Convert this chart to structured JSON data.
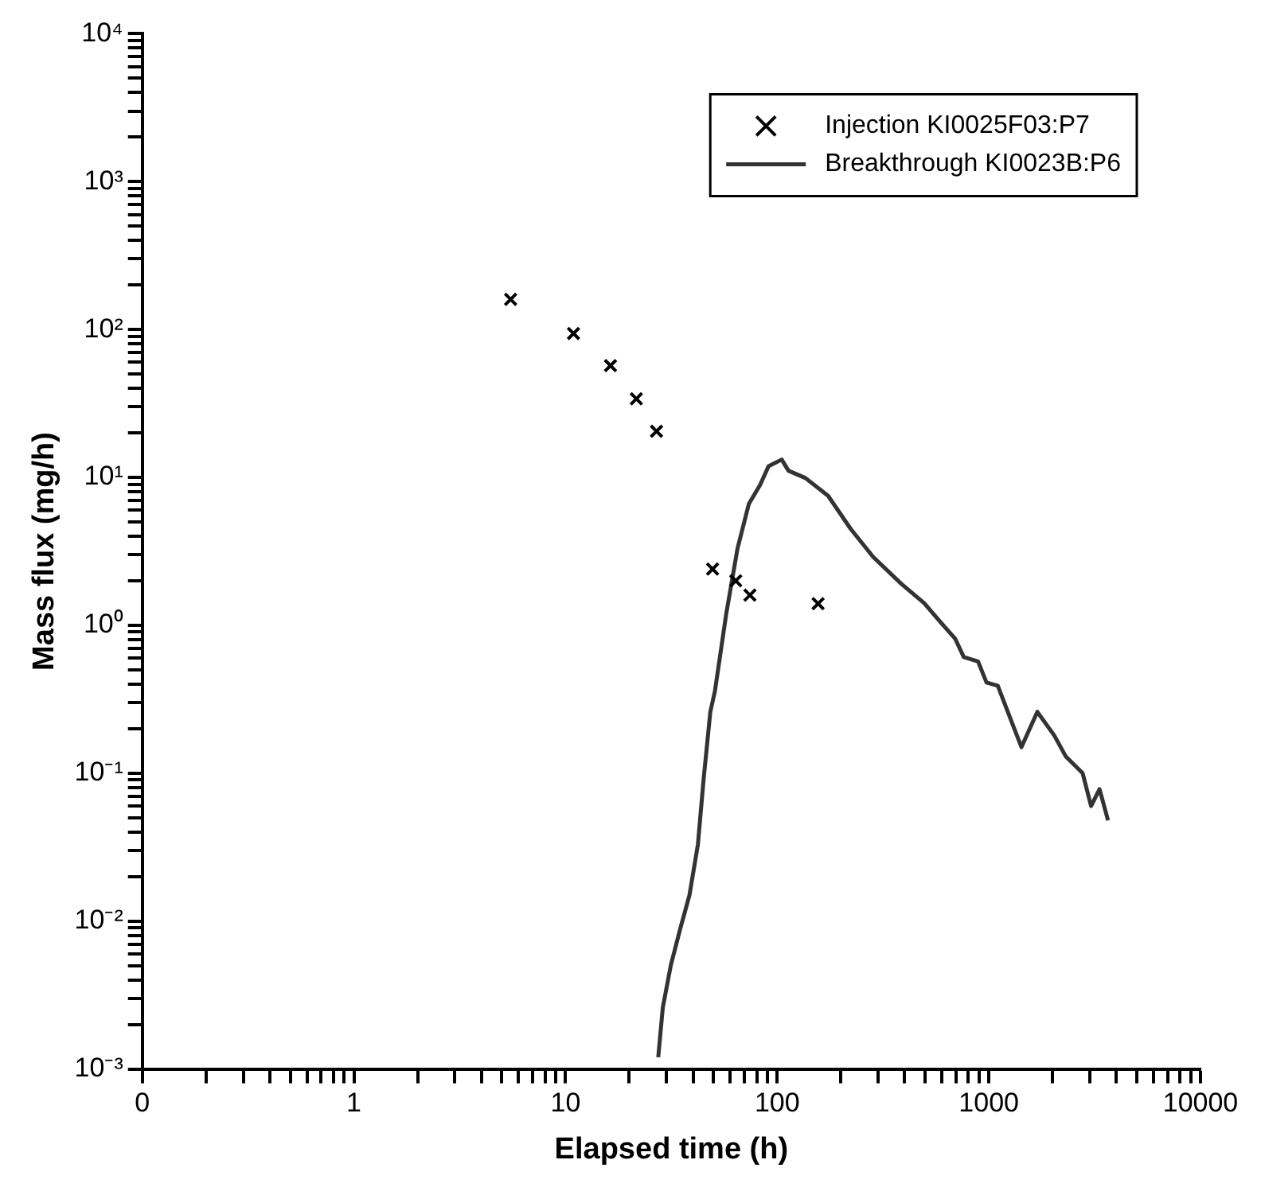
{
  "chart_data": {
    "type": "scatter",
    "xlabel": "Elapsed time (h)",
    "ylabel": "Mass flux (mg/h)",
    "log": "xy",
    "grid": false,
    "legend": "top right",
    "xlim": [
      0.1,
      10000
    ],
    "xticks": [
      {
        "value": 0.1,
        "label": "0"
      },
      {
        "value": 0.2,
        "label": null
      },
      {
        "value": 0.3,
        "label": null
      },
      {
        "value": 0.4,
        "label": null
      },
      {
        "value": 0.5,
        "label": null
      },
      {
        "value": 0.6,
        "label": null
      },
      {
        "value": 0.7,
        "label": null
      },
      {
        "value": 0.8,
        "label": null
      },
      {
        "value": 0.9,
        "label": null
      },
      1,
      {
        "value": 2,
        "label": null
      },
      {
        "value": 3,
        "label": null
      },
      {
        "value": 4,
        "label": null
      },
      {
        "value": 5,
        "label": null
      },
      {
        "value": 6,
        "label": null
      },
      {
        "value": 7,
        "label": null
      },
      {
        "value": 8,
        "label": null
      },
      {
        "value": 9,
        "label": null
      },
      10,
      {
        "value": 20,
        "label": null
      },
      {
        "value": 30,
        "label": null
      },
      {
        "value": 40,
        "label": null
      },
      {
        "value": 50,
        "label": null
      },
      {
        "value": 60,
        "label": null
      },
      {
        "value": 70,
        "label": null
      },
      {
        "value": 80,
        "label": null
      },
      {
        "value": 90,
        "label": null
      },
      100,
      {
        "value": 200,
        "label": null
      },
      {
        "value": 300,
        "label": null
      },
      {
        "value": 400,
        "label": null
      },
      {
        "value": 500,
        "label": null
      },
      {
        "value": 600,
        "label": null
      },
      {
        "value": 700,
        "label": null
      },
      {
        "value": 800,
        "label": null
      },
      {
        "value": 900,
        "label": null
      },
      1000,
      {
        "value": 2000,
        "label": null
      },
      {
        "value": 3000,
        "label": null
      },
      {
        "value": 4000,
        "label": null
      },
      {
        "value": 5000,
        "label": null
      },
      {
        "value": 6000,
        "label": null
      },
      {
        "value": 7000,
        "label": null
      },
      {
        "value": 8000,
        "label": null
      },
      {
        "value": 9000,
        "label": null
      },
      10000
    ],
    "ylim": [
      0.001,
      10000
    ],
    "yticks": [
      {
        "value": 0.001,
        "label": "10⁻³"
      },
      {
        "value": 0.002,
        "label": null
      },
      {
        "value": 0.003,
        "label": null
      },
      {
        "value": 0.004,
        "label": null
      },
      {
        "value": 0.005,
        "label": null
      },
      {
        "value": 0.006,
        "label": null
      },
      {
        "value": 0.007,
        "label": null
      },
      {
        "value": 0.008,
        "label": null
      },
      {
        "value": 0.009,
        "label": null
      },
      {
        "value": 0.01,
        "label": "10⁻²"
      },
      {
        "value": 0.02,
        "label": null
      },
      {
        "value": 0.03,
        "label": null
      },
      {
        "value": 0.04,
        "label": null
      },
      {
        "value": 0.05,
        "label": null
      },
      {
        "value": 0.06,
        "label": null
      },
      {
        "value": 0.07,
        "label": null
      },
      {
        "value": 0.08,
        "label": null
      },
      {
        "value": 0.09,
        "label": null
      },
      {
        "value": 0.1,
        "label": "10⁻¹"
      },
      {
        "value": 0.2,
        "label": null
      },
      {
        "value": 0.3,
        "label": null
      },
      {
        "value": 0.4,
        "label": null
      },
      {
        "value": 0.5,
        "label": null
      },
      {
        "value": 0.6,
        "label": null
      },
      {
        "value": 0.7,
        "label": null
      },
      {
        "value": 0.8,
        "label": null
      },
      {
        "value": 0.9,
        "label": null
      },
      {
        "value": 1,
        "label": "10⁰"
      },
      {
        "value": 2,
        "label": null
      },
      {
        "value": 3,
        "label": null
      },
      {
        "value": 4,
        "label": null
      },
      {
        "value": 5,
        "label": null
      },
      {
        "value": 6,
        "label": null
      },
      {
        "value": 7,
        "label": null
      },
      {
        "value": 8,
        "label": null
      },
      {
        "value": 9,
        "label": null
      },
      {
        "value": 10,
        "label": "10¹"
      },
      {
        "value": 20,
        "label": null
      },
      {
        "value": 30,
        "label": null
      },
      {
        "value": 40,
        "label": null
      },
      {
        "value": 50,
        "label": null
      },
      {
        "value": 60,
        "label": null
      },
      {
        "value": 70,
        "label": null
      },
      {
        "value": 80,
        "label": null
      },
      {
        "value": 90,
        "label": null
      },
      {
        "value": 100,
        "label": "10²"
      },
      {
        "value": 200,
        "label": null
      },
      {
        "value": 300,
        "label": null
      },
      {
        "value": 400,
        "label": null
      },
      {
        "value": 500,
        "label": null
      },
      {
        "value": 600,
        "label": null
      },
      {
        "value": 700,
        "label": null
      },
      {
        "value": 800,
        "label": null
      },
      {
        "value": 900,
        "label": null
      },
      {
        "value": 1000,
        "label": "10³"
      },
      {
        "value": 2000,
        "label": null
      },
      {
        "value": 3000,
        "label": null
      },
      {
        "value": 4000,
        "label": null
      },
      {
        "value": 5000,
        "label": null
      },
      {
        "value": 6000,
        "label": null
      },
      {
        "value": 7000,
        "label": null
      },
      {
        "value": 8000,
        "label": null
      },
      {
        "value": 9000,
        "label": null
      },
      {
        "value": 10000,
        "label": "10⁴"
      }
    ],
    "series": [
      {
        "name": "Injection KI0025F03:P7",
        "marker": "cross",
        "color": "#000000",
        "x": [
          5.5,
          10.9,
          16.3,
          21.6,
          26.9,
          49.5,
          63.7,
          74.3,
          156
        ],
        "values": [
          160,
          94,
          57,
          34,
          20.5,
          2.4,
          2.0,
          1.6,
          1.4
        ]
      },
      {
        "name": "Breakthrough KI0023B:P6",
        "type": "line",
        "marker": "none",
        "line_style": "solid",
        "color": "#333333",
        "x": [
          27.4,
          28.8,
          31.4,
          34.7,
          38.5,
          42.2,
          44.9,
          48.3,
          50.8,
          57.4,
          64.9,
          73.4,
          83,
          91,
          105,
          113,
          136,
          174,
          222,
          284,
          387,
          495,
          595,
          694,
          761,
          889,
          975,
          1102,
          1285,
          1426,
          1694,
          2037,
          2308,
          2774,
          3041,
          3334,
          3656
        ],
        "values": [
          0.0012,
          0.0026,
          0.005,
          0.0087,
          0.015,
          0.033,
          0.091,
          0.26,
          0.36,
          1.19,
          3.3,
          6.6,
          8.9,
          11.9,
          13.2,
          11.1,
          9.9,
          7.5,
          4.5,
          2.9,
          1.9,
          1.41,
          1.04,
          0.81,
          0.61,
          0.57,
          0.41,
          0.39,
          0.22,
          0.15,
          0.26,
          0.18,
          0.13,
          0.1,
          0.06,
          0.078,
          0.048
        ]
      }
    ]
  }
}
